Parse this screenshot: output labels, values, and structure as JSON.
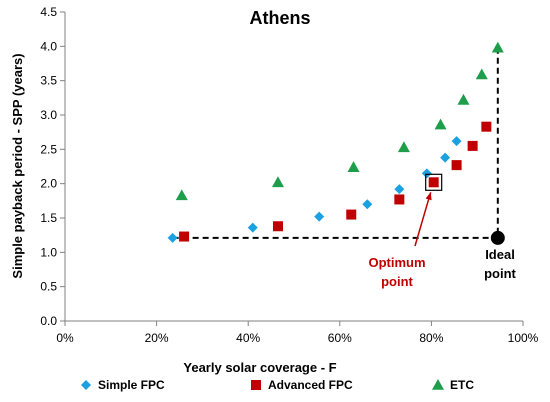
{
  "chart_data": {
    "type": "scatter",
    "title": "Athens",
    "xlabel": "Yearly solar coverage - F",
    "ylabel": "Simple payback period - SPP (years)",
    "xlim": [
      0,
      1
    ],
    "ylim": [
      0,
      4.5
    ],
    "x_ticks": [
      "0%",
      "20%",
      "40%",
      "60%",
      "80%",
      "100%"
    ],
    "x_tick_values": [
      0,
      0.2,
      0.4,
      0.6,
      0.8,
      1.0
    ],
    "y_ticks": [
      "0.0",
      "0.5",
      "1.0",
      "1.5",
      "2.0",
      "2.5",
      "3.0",
      "3.5",
      "4.0",
      "4.5"
    ],
    "y_tick_values": [
      0,
      0.5,
      1.0,
      1.5,
      2.0,
      2.5,
      3.0,
      3.5,
      4.0,
      4.5
    ],
    "grid": false,
    "legend_position": "bottom",
    "series": [
      {
        "name": "Simple FPC",
        "marker": "diamond",
        "color": "#1BA1E2",
        "points": [
          [
            0.235,
            1.21
          ],
          [
            0.41,
            1.36
          ],
          [
            0.555,
            1.52
          ],
          [
            0.66,
            1.7
          ],
          [
            0.73,
            1.92
          ],
          [
            0.79,
            2.15
          ],
          [
            0.83,
            2.38
          ],
          [
            0.855,
            2.62
          ]
        ]
      },
      {
        "name": "Advanced FPC",
        "marker": "square",
        "color": "#C00000",
        "points": [
          [
            0.26,
            1.23
          ],
          [
            0.465,
            1.38
          ],
          [
            0.625,
            1.55
          ],
          [
            0.73,
            1.77
          ],
          [
            0.805,
            2.02
          ],
          [
            0.855,
            2.27
          ],
          [
            0.89,
            2.55
          ],
          [
            0.92,
            2.83
          ]
        ]
      },
      {
        "name": "ETC",
        "marker": "triangle",
        "color": "#1E9E4A",
        "points": [
          [
            0.255,
            1.83
          ],
          [
            0.465,
            2.02
          ],
          [
            0.63,
            2.24
          ],
          [
            0.74,
            2.53
          ],
          [
            0.82,
            2.86
          ],
          [
            0.87,
            3.22
          ],
          [
            0.91,
            3.59
          ],
          [
            0.945,
            3.98
          ]
        ]
      }
    ],
    "annotations": {
      "optimum": {
        "label_line1": "Optimum",
        "label_line2": "point",
        "color": "#C00000",
        "x": 0.805,
        "y": 2.02
      },
      "ideal": {
        "label_line1": "Ideal",
        "label_line2": "point",
        "color": "#000000",
        "x": 0.945,
        "y": 1.21
      }
    }
  }
}
